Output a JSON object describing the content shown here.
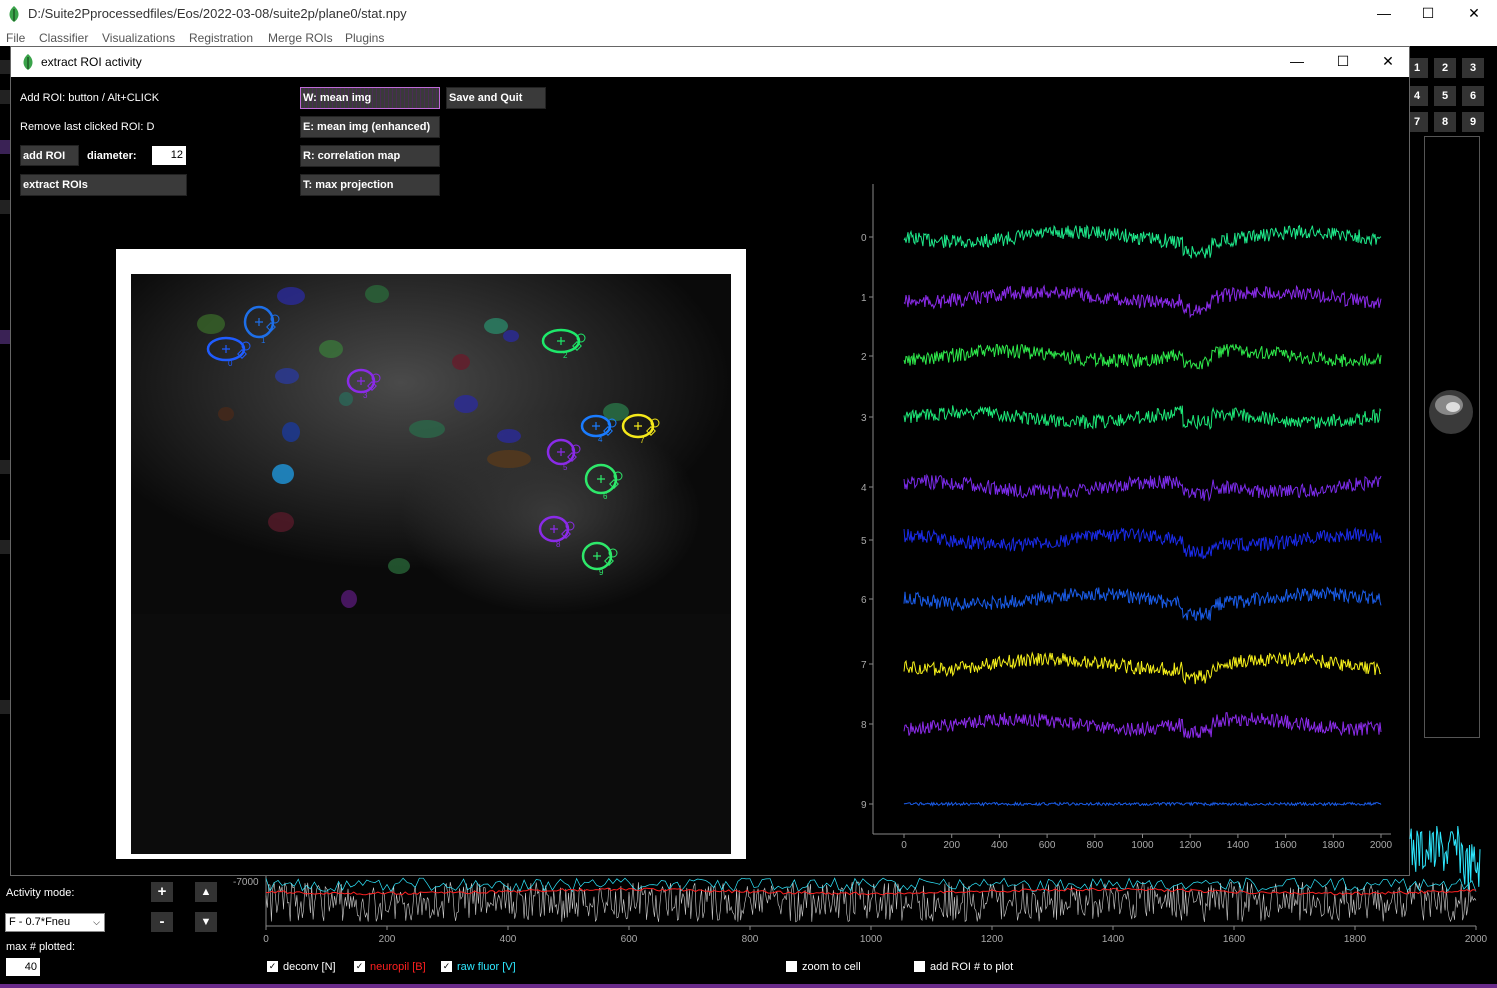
{
  "main_window": {
    "title": "D:/Suite2Pprocessedfiles/Eos/2022-03-08/suite2p/plane0/stat.npy",
    "menu": [
      "File",
      "Classifier",
      "Visualizations",
      "Registration",
      "Merge ROIs",
      "Plugins"
    ],
    "controls": {
      "minimize": "—",
      "maximize": "☐",
      "close": "✕"
    }
  },
  "dialog": {
    "title": "extract ROI activity",
    "hint_add": "Add ROI: button / Alt+CLICK",
    "hint_remove": "Remove last clicked ROI: D",
    "add_roi_label": "add ROI",
    "diameter_label": "diameter:",
    "diameter_value": "12",
    "extract_label": "extract ROIs",
    "view_buttons": [
      "W: mean img",
      "E: mean img (enhanced)",
      "R: correlation map",
      "T: max projection"
    ],
    "save_label": "Save and Quit",
    "controls": {
      "minimize": "—",
      "maximize": "☐",
      "close": "✕"
    }
  },
  "rois": [
    {
      "id": "0",
      "color": "#1f5cff"
    },
    {
      "id": "1",
      "color": "#1e6fe8"
    },
    {
      "id": "2",
      "color": "#1ee86a"
    },
    {
      "id": "3",
      "color": "#8a2be8"
    },
    {
      "id": "4",
      "color": "#1a7cff"
    },
    {
      "id": "5",
      "color": "#8a2be8"
    },
    {
      "id": "6",
      "color": "#2ee86a"
    },
    {
      "id": "7",
      "color": "#f5e81a"
    },
    {
      "id": "8",
      "color": "#8a2be8"
    },
    {
      "id": "9",
      "color": "#2ee86a"
    }
  ],
  "chart_data": {
    "type": "line",
    "title": "",
    "x_ticks": [
      "0",
      "200",
      "400",
      "600",
      "800",
      "1000",
      "1200",
      "1400",
      "1600",
      "1800",
      "2000"
    ],
    "xlim": [
      0,
      2000
    ],
    "y_ticks": [
      "0",
      "1",
      "2",
      "3",
      "4",
      "5",
      "6",
      "7",
      "8",
      "9"
    ],
    "series": [
      {
        "name": "0",
        "color": "#1ee88a"
      },
      {
        "name": "1",
        "color": "#8a2be8"
      },
      {
        "name": "2",
        "color": "#2ee84a"
      },
      {
        "name": "3",
        "color": "#1ee878"
      },
      {
        "name": "4",
        "color": "#7a2be8"
      },
      {
        "name": "5",
        "color": "#1a2be8"
      },
      {
        "name": "6",
        "color": "#1a5ce8"
      },
      {
        "name": "7",
        "color": "#f5f01a"
      },
      {
        "name": "8",
        "color": "#8a2be8"
      },
      {
        "name": "9",
        "color": "#1a5ce8"
      }
    ]
  },
  "bottom_panel": {
    "activity_mode_label": "Activity mode:",
    "activity_mode_value": "F - 0.7*Fneu",
    "max_plotted_label": "max # plotted:",
    "max_plotted_value": "40",
    "plus": "+",
    "minus": "-",
    "up": "▲",
    "down": "▼",
    "y_label": "-7000",
    "x_ticks": [
      "0",
      "200",
      "400",
      "600",
      "800",
      "1000",
      "1200",
      "1400",
      "1600",
      "1800",
      "2000"
    ],
    "checkboxes": [
      {
        "label": "deconv [N]",
        "color": "#ffffff"
      },
      {
        "label": "neuropil [B]",
        "color": "#ff2020"
      },
      {
        "label": "raw fluor [V]",
        "color": "#2ee8ff"
      },
      {
        "label": "zoom to cell",
        "color": "#ffffff"
      },
      {
        "label": "add ROI # to plot",
        "color": "#ffffff"
      }
    ]
  },
  "grid_buttons": [
    "1",
    "2",
    "3",
    "4",
    "5",
    "6",
    "7",
    "8",
    "9"
  ]
}
